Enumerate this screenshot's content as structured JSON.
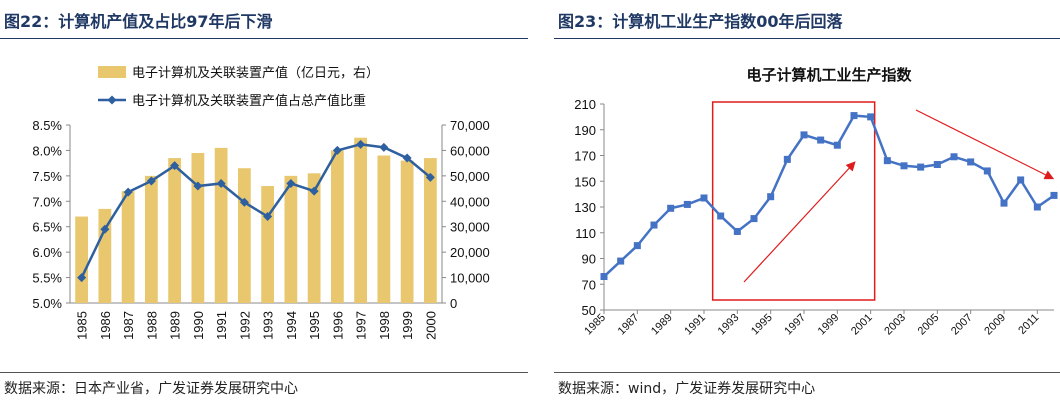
{
  "left_figure": {
    "title": "图22：计算机产值及占比97年后下滑",
    "source": "数据来源：日本产业省，广发证券发展研究中心"
  },
  "right_figure": {
    "title": "图23：计算机工业生产指数00年后回落",
    "source": "数据来源：wind，广发证券发展研究中心"
  },
  "colors": {
    "title_navy": "#1f3864",
    "bar_gold": "#e8c76e",
    "line_blue": "#2e5f9e",
    "index_blue": "#4472c4",
    "highlight_red": "#e01b1b"
  },
  "chart_data": [
    {
      "type": "bar+line",
      "title": "",
      "categories": [
        "1985",
        "1986",
        "1987",
        "1988",
        "1989",
        "1990",
        "1991",
        "1992",
        "1993",
        "1994",
        "1995",
        "1996",
        "1997",
        "1998",
        "1999",
        "2000"
      ],
      "series": [
        {
          "name": "电子计算机及关联装置产值（亿日元，右）",
          "type": "bar",
          "axis": "right",
          "values": [
            34000,
            37000,
            44000,
            50000,
            57000,
            59000,
            61000,
            53000,
            46000,
            50000,
            51000,
            60000,
            65000,
            58000,
            56000,
            57000
          ]
        },
        {
          "name": "电子计算机及关联装置产值占总产值比重",
          "type": "line",
          "axis": "left",
          "values": [
            5.5,
            6.45,
            7.18,
            7.4,
            7.7,
            7.3,
            7.35,
            6.98,
            6.7,
            7.35,
            7.2,
            8.0,
            8.12,
            8.06,
            7.85,
            7.47
          ]
        }
      ],
      "left_axis": {
        "min": 5.0,
        "max": 8.5,
        "ticks": [
          "5.0%",
          "5.5%",
          "6.0%",
          "6.5%",
          "7.0%",
          "7.5%",
          "8.0%",
          "8.5%"
        ]
      },
      "right_axis": {
        "min": 0,
        "max": 70000,
        "ticks": [
          "0",
          "10,000",
          "20,000",
          "30,000",
          "40,000",
          "50,000",
          "60,000",
          "70,000"
        ]
      },
      "legend_position": "top",
      "grid": false
    },
    {
      "type": "line",
      "title": "电子计算机工业生产指数",
      "x": [
        "1985",
        "1986",
        "1987",
        "1988",
        "1989",
        "1990",
        "1991",
        "1992",
        "1993",
        "1994",
        "1995",
        "1996",
        "1997",
        "1998",
        "1999",
        "2000",
        "2001",
        "2002",
        "2003",
        "2004",
        "2005",
        "2006",
        "2007",
        "2008",
        "2009",
        "2010",
        "2011",
        "2012"
      ],
      "x_tick_labels": [
        "1985",
        "1987",
        "1989",
        "1991",
        "1993",
        "1995",
        "1997",
        "1999",
        "2001",
        "2003",
        "2005",
        "2007",
        "2009",
        "2011"
      ],
      "series": [
        {
          "name": "",
          "values": [
            76,
            88,
            100,
            116,
            129,
            132,
            137,
            123,
            111,
            121,
            138,
            167,
            186,
            182,
            178,
            201,
            200,
            166,
            162,
            161,
            163,
            169,
            165,
            158,
            133,
            151,
            130,
            139
          ]
        }
      ],
      "y_axis": {
        "min": 50,
        "max": 210,
        "ticks": [
          "50",
          "70",
          "90",
          "110",
          "130",
          "150",
          "170",
          "190",
          "210"
        ]
      },
      "annotations": [
        "red box highlighting 1992–2001",
        "red rising arrow",
        "red falling arrow"
      ],
      "grid": false
    }
  ]
}
